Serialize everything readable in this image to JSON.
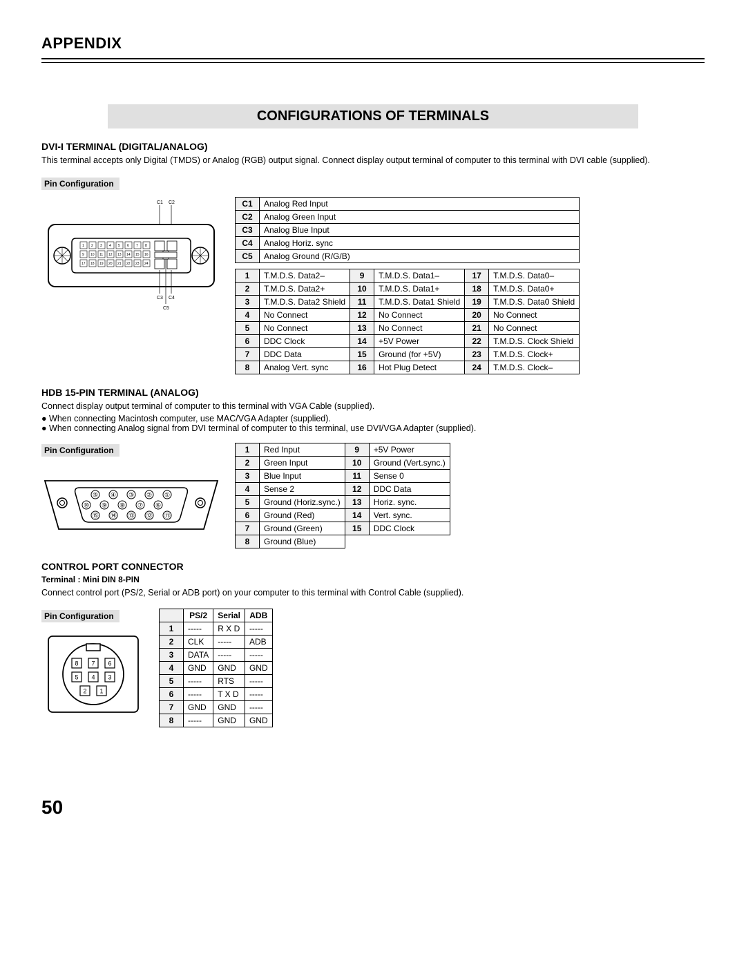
{
  "header": "APPENDIX",
  "page_title": "CONFIGURATIONS OF TERMINALS",
  "page_number": "50",
  "s1": {
    "title": "DVI-I TERMINAL (DIGITAL/ANALOG)",
    "body": "This terminal accepts only Digital (TMDS) or Analog (RGB) output signal. Connect  display output terminal of computer to this terminal with DVI cable (supplied).",
    "pinconf": "Pin Configuration",
    "diagram_labels": {
      "c1": "C1",
      "c2": "C2",
      "c3": "C3",
      "c4": "C4",
      "c5": "C5"
    },
    "ctable": [
      [
        "C1",
        "Analog Red Input"
      ],
      [
        "C2",
        "Analog Green Input"
      ],
      [
        "C3",
        "Analog Blue Input"
      ],
      [
        "C4",
        "Analog Horiz. sync"
      ],
      [
        "C5",
        "Analog Ground (R/G/B)"
      ]
    ],
    "main": [
      [
        "1",
        "T.M.D.S. Data2–",
        "9",
        "T.M.D.S. Data1–",
        "17",
        "T.M.D.S. Data0–"
      ],
      [
        "2",
        "T.M.D.S. Data2+",
        "10",
        "T.M.D.S. Data1+",
        "18",
        "T.M.D.S. Data0+"
      ],
      [
        "3",
        "T.M.D.S. Data2 Shield",
        "11",
        "T.M.D.S. Data1 Shield",
        "19",
        "T.M.D.S. Data0 Shield"
      ],
      [
        "4",
        "No Connect",
        "12",
        "No Connect",
        "20",
        "No Connect"
      ],
      [
        "5",
        "No Connect",
        "13",
        "No Connect",
        "21",
        "No Connect"
      ],
      [
        "6",
        "DDC Clock",
        "14",
        "+5V Power",
        "22",
        "T.M.D.S. Clock Shield"
      ],
      [
        "7",
        "DDC Data",
        "15",
        "Ground (for +5V)",
        "23",
        "T.M.D.S. Clock+"
      ],
      [
        "8",
        "Analog Vert. sync",
        "16",
        "Hot Plug Detect",
        "24",
        "T.M.D.S. Clock–"
      ]
    ]
  },
  "s2": {
    "title": "HDB 15-PIN TERMINAL (ANALOG)",
    "body": "Connect display output terminal of computer to this terminal with VGA Cable (supplied).",
    "bullets": [
      "When connecting Macintosh computer, use MAC/VGA Adapter (supplied).",
      "When connecting Analog signal from DVI terminal of computer to this terminal, use DVI/VGA Adapter (supplied)."
    ],
    "pinconf": "Pin Configuration",
    "main": [
      [
        "1",
        "Red Input",
        "9",
        "+5V Power"
      ],
      [
        "2",
        "Green Input",
        "10",
        "Ground (Vert.sync.)"
      ],
      [
        "3",
        "Blue Input",
        "11",
        "Sense 0"
      ],
      [
        "4",
        "Sense 2",
        "12",
        "DDC Data"
      ],
      [
        "5",
        "Ground (Horiz.sync.)",
        "13",
        "Horiz. sync."
      ],
      [
        "6",
        "Ground (Red)",
        "14",
        "Vert. sync."
      ],
      [
        "7",
        "Ground (Green)",
        "15",
        "DDC Clock"
      ],
      [
        "8",
        "Ground (Blue)",
        "",
        ""
      ]
    ]
  },
  "s3": {
    "title": "CONTROL PORT CONNECTOR",
    "sub": "Terminal : Mini DIN 8-PIN",
    "body": "Connect control port (PS/2, Serial or ADB port) on your computer to this terminal with Control Cable (supplied).",
    "pinconf": "Pin Configuration",
    "headers": [
      "",
      "PS/2",
      "Serial",
      "ADB"
    ],
    "rows": [
      [
        "1",
        "-----",
        "R X D",
        "-----"
      ],
      [
        "2",
        "CLK",
        "-----",
        "ADB"
      ],
      [
        "3",
        "DATA",
        "-----",
        "-----"
      ],
      [
        "4",
        "GND",
        "GND",
        "GND"
      ],
      [
        "5",
        "-----",
        "RTS",
        "-----"
      ],
      [
        "6",
        "-----",
        "T X D",
        "-----"
      ],
      [
        "7",
        "GND",
        "GND",
        "-----"
      ],
      [
        "8",
        "-----",
        "GND",
        "GND"
      ]
    ]
  }
}
